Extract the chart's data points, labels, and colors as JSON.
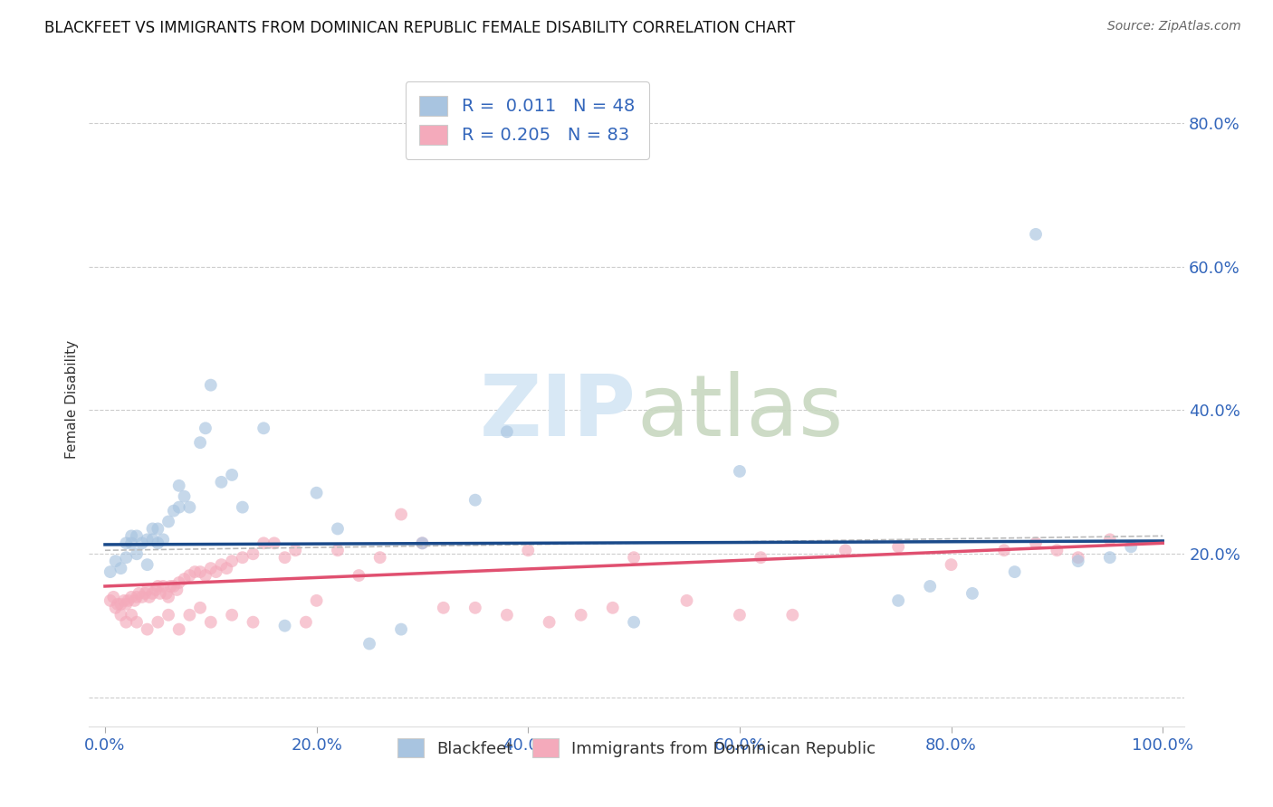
{
  "title": "BLACKFEET VS IMMIGRANTS FROM DOMINICAN REPUBLIC FEMALE DISABILITY CORRELATION CHART",
  "source": "Source: ZipAtlas.com",
  "xlabel_ticks": [
    "0.0%",
    "20.0%",
    "40.0%",
    "60.0%",
    "80.0%",
    "100.0%"
  ],
  "xlabel_tick_vals": [
    0.0,
    0.2,
    0.4,
    0.6,
    0.8,
    1.0
  ],
  "ylabel": "Female Disability",
  "ytick_vals": [
    0.0,
    0.2,
    0.4,
    0.6,
    0.8
  ],
  "ytick_labels": [
    "",
    "20.0%",
    "40.0%",
    "60.0%",
    "80.0%"
  ],
  "legend_label1": "Blackfeet",
  "legend_label2": "Immigrants from Dominican Republic",
  "R1": "0.011",
  "N1": "48",
  "R2": "0.205",
  "N2": "83",
  "color_blue": "#A8C4E0",
  "color_blue_line": "#1A4A8A",
  "color_pink": "#F4AABB",
  "color_pink_line": "#E05070",
  "color_dashed": "#BBBBBB",
  "watermark_color": "#D8E8F5",
  "blue_line_y0": 0.213,
  "blue_line_y1": 0.218,
  "pink_line_y0": 0.155,
  "pink_line_y1": 0.215,
  "dashed_line_y0": 0.205,
  "dashed_line_y1": 0.225,
  "blue_points_x": [
    0.005,
    0.01,
    0.015,
    0.02,
    0.02,
    0.025,
    0.025,
    0.03,
    0.03,
    0.035,
    0.04,
    0.04,
    0.045,
    0.045,
    0.05,
    0.05,
    0.055,
    0.06,
    0.065,
    0.07,
    0.07,
    0.075,
    0.08,
    0.09,
    0.095,
    0.1,
    0.11,
    0.12,
    0.13,
    0.15,
    0.17,
    0.2,
    0.22,
    0.25,
    0.28,
    0.3,
    0.35,
    0.38,
    0.5,
    0.6,
    0.75,
    0.78,
    0.82,
    0.86,
    0.88,
    0.92,
    0.95,
    0.97
  ],
  "blue_points_y": [
    0.175,
    0.19,
    0.18,
    0.215,
    0.195,
    0.215,
    0.225,
    0.2,
    0.225,
    0.215,
    0.22,
    0.185,
    0.235,
    0.22,
    0.215,
    0.235,
    0.22,
    0.245,
    0.26,
    0.295,
    0.265,
    0.28,
    0.265,
    0.355,
    0.375,
    0.435,
    0.3,
    0.31,
    0.265,
    0.375,
    0.1,
    0.285,
    0.235,
    0.075,
    0.095,
    0.215,
    0.275,
    0.37,
    0.105,
    0.315,
    0.135,
    0.155,
    0.145,
    0.175,
    0.645,
    0.19,
    0.195,
    0.21
  ],
  "pink_points_x": [
    0.005,
    0.008,
    0.01,
    0.012,
    0.015,
    0.018,
    0.02,
    0.022,
    0.025,
    0.028,
    0.03,
    0.032,
    0.035,
    0.038,
    0.04,
    0.042,
    0.045,
    0.048,
    0.05,
    0.052,
    0.055,
    0.058,
    0.06,
    0.062,
    0.065,
    0.068,
    0.07,
    0.075,
    0.08,
    0.085,
    0.09,
    0.095,
    0.1,
    0.105,
    0.11,
    0.115,
    0.12,
    0.13,
    0.14,
    0.15,
    0.16,
    0.17,
    0.18,
    0.19,
    0.2,
    0.22,
    0.24,
    0.26,
    0.28,
    0.3,
    0.32,
    0.35,
    0.38,
    0.4,
    0.42,
    0.45,
    0.48,
    0.5,
    0.55,
    0.6,
    0.62,
    0.65,
    0.7,
    0.75,
    0.8,
    0.85,
    0.88,
    0.9,
    0.92,
    0.95,
    0.015,
    0.02,
    0.025,
    0.03,
    0.04,
    0.05,
    0.06,
    0.07,
    0.08,
    0.09,
    0.1,
    0.12,
    0.14
  ],
  "pink_points_y": [
    0.135,
    0.14,
    0.125,
    0.13,
    0.13,
    0.135,
    0.13,
    0.135,
    0.14,
    0.135,
    0.14,
    0.145,
    0.14,
    0.145,
    0.15,
    0.14,
    0.145,
    0.15,
    0.155,
    0.145,
    0.155,
    0.145,
    0.14,
    0.155,
    0.155,
    0.15,
    0.16,
    0.165,
    0.17,
    0.175,
    0.175,
    0.17,
    0.18,
    0.175,
    0.185,
    0.18,
    0.19,
    0.195,
    0.2,
    0.215,
    0.215,
    0.195,
    0.205,
    0.105,
    0.135,
    0.205,
    0.17,
    0.195,
    0.255,
    0.215,
    0.125,
    0.125,
    0.115,
    0.205,
    0.105,
    0.115,
    0.125,
    0.195,
    0.135,
    0.115,
    0.195,
    0.115,
    0.205,
    0.21,
    0.185,
    0.205,
    0.215,
    0.205,
    0.195,
    0.22,
    0.115,
    0.105,
    0.115,
    0.105,
    0.095,
    0.105,
    0.115,
    0.095,
    0.115,
    0.125,
    0.105,
    0.115,
    0.105
  ]
}
